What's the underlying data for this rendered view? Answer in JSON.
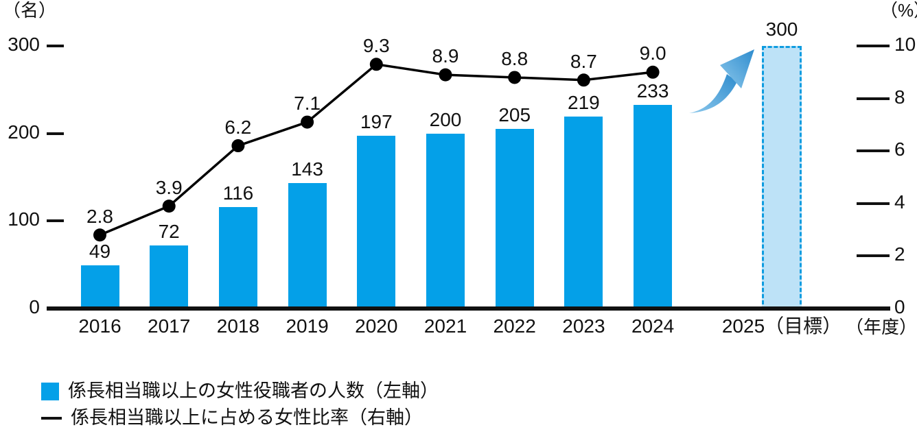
{
  "chart_data": {
    "type": "bar+line combo",
    "categories": [
      "2016",
      "2017",
      "2018",
      "2019",
      "2020",
      "2021",
      "2022",
      "2023",
      "2024"
    ],
    "series": [
      {
        "name": "係長相当職以上の女性役職者の人数（左軸）",
        "type": "bar",
        "axis": "left",
        "values": [
          49,
          72,
          116,
          143,
          197,
          200,
          205,
          219,
          233
        ]
      },
      {
        "name": "係長相当職以上に占める女性比率（右軸）",
        "type": "line",
        "axis": "right",
        "values": [
          2.8,
          3.9,
          6.2,
          7.1,
          9.3,
          8.9,
          8.8,
          8.7,
          9.0
        ]
      }
    ],
    "target": {
      "category": "2025（目標）",
      "value": 300
    },
    "left_axis": {
      "unit": "（名）",
      "ticks": [
        0,
        100,
        200,
        300
      ],
      "max": 300
    },
    "right_axis": {
      "unit": "（%）",
      "ticks": [
        0,
        2,
        4,
        6,
        8,
        10
      ],
      "max": 10
    },
    "x_axis_unit": "（年度）",
    "grid": false,
    "legend_position": "bottom-left",
    "colors": {
      "bar": "#04a0e8",
      "target_fill": "#bde2f7",
      "target_border": "#0e9ce0",
      "line": "#000000",
      "arrow_light": "#8ec9ec",
      "arrow_dark": "#2e8cce",
      "text": "#111111"
    }
  },
  "legend": {
    "items": [
      {
        "marker": "square",
        "label": "係長相当職以上の女性役職者の人数（左軸）"
      },
      {
        "marker": "line",
        "label": "係長相当職以上に占める女性比率（右軸）"
      }
    ]
  }
}
